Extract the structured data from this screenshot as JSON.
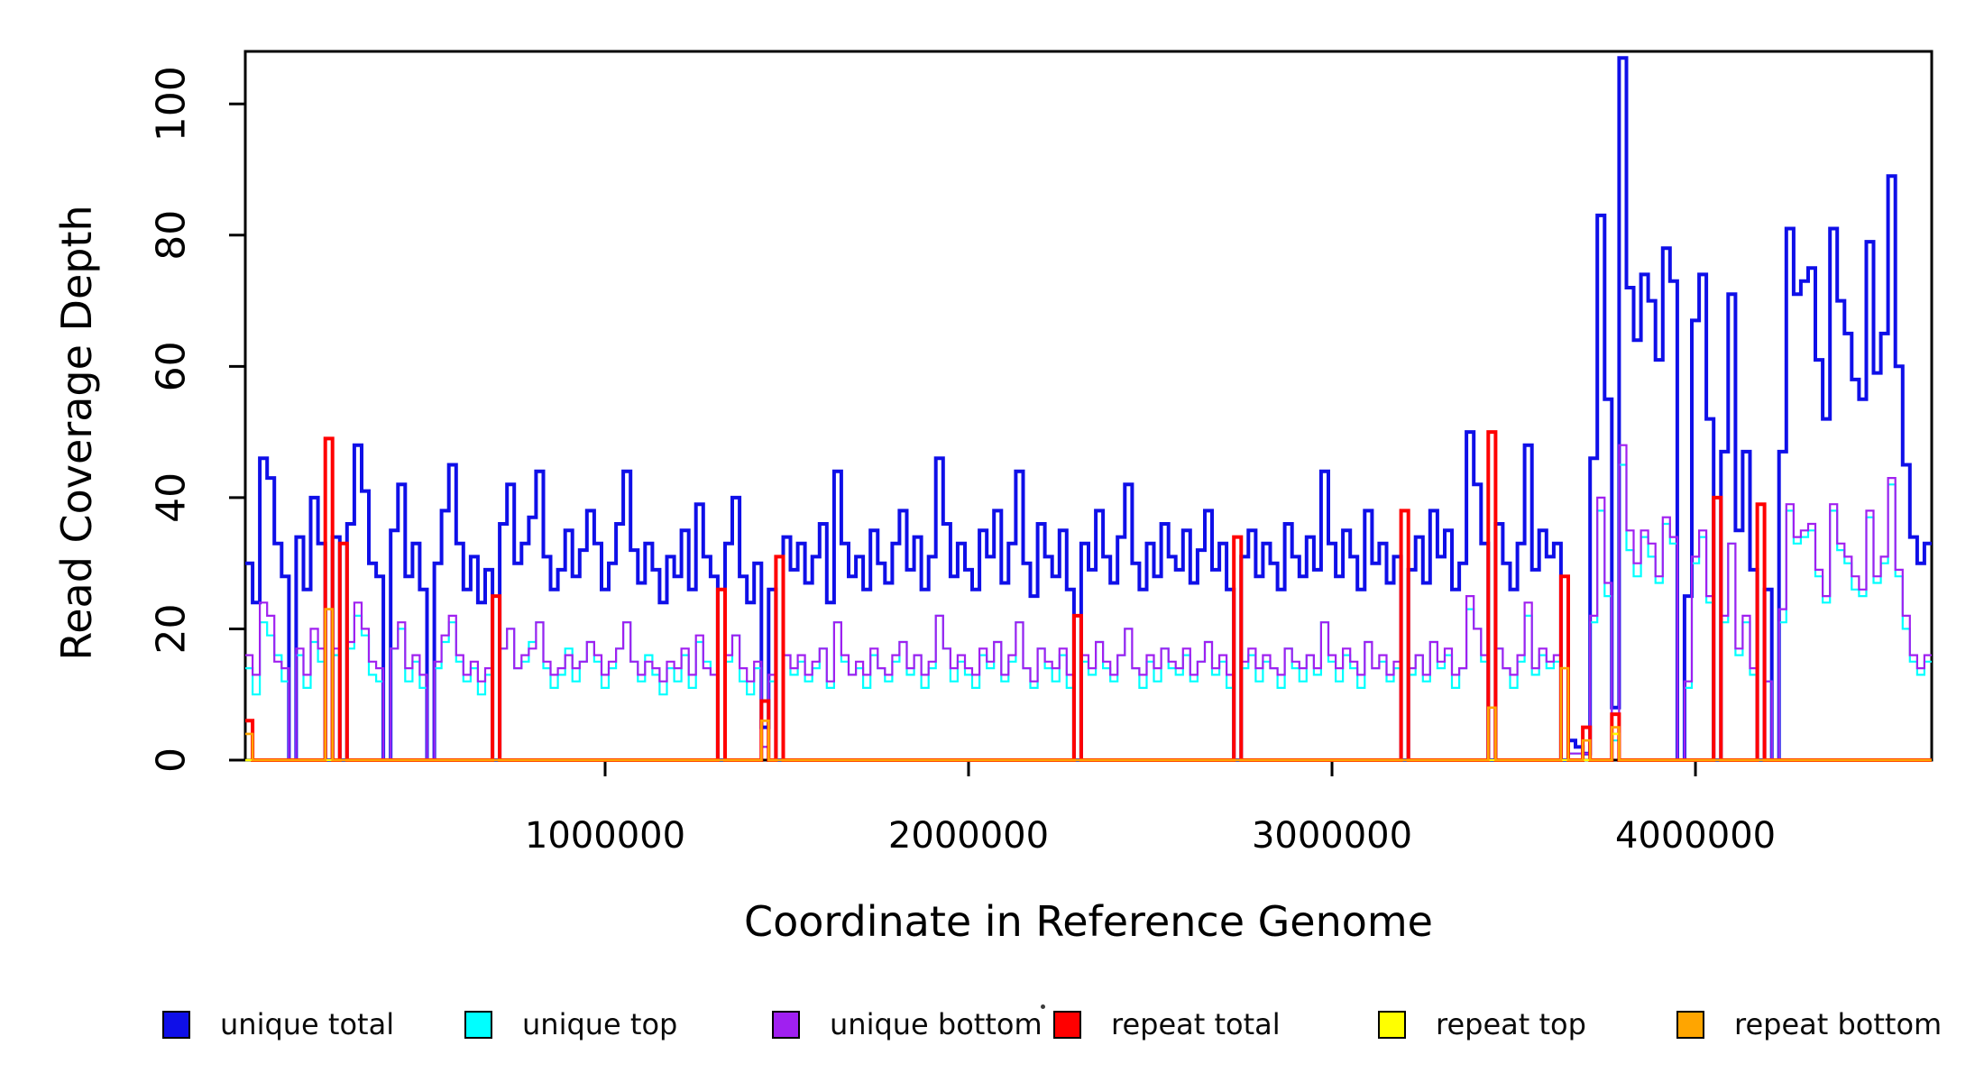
{
  "chart_data": {
    "type": "line",
    "subtype": "step",
    "title": "",
    "xlabel": "Coordinate in Reference Genome",
    "ylabel": "Read Coverage Depth",
    "xlim": [
      10000,
      4650000
    ],
    "ylim": [
      0,
      108
    ],
    "grid": false,
    "legend_position": "bottom",
    "bin_size": 20000,
    "x_ticks": [
      {
        "value": 1000000,
        "label": "1000000"
      },
      {
        "value": 2000000,
        "label": "2000000"
      },
      {
        "value": 3000000,
        "label": "3000000"
      },
      {
        "value": 4000000,
        "label": "4000000"
      }
    ],
    "y_ticks": [
      {
        "value": 0,
        "label": "0"
      },
      {
        "value": 20,
        "label": "20"
      },
      {
        "value": 40,
        "label": "40"
      },
      {
        "value": 60,
        "label": "60"
      },
      {
        "value": 80,
        "label": "80"
      },
      {
        "value": 100,
        "label": "100"
      }
    ],
    "series": [
      {
        "name": "unique total",
        "color": "#0f0fe8",
        "line_width": 4,
        "values": [
          30,
          24,
          46,
          43,
          33,
          28,
          0,
          34,
          26,
          40,
          33,
          0,
          34,
          0,
          36,
          48,
          41,
          30,
          28,
          0,
          35,
          42,
          28,
          33,
          26,
          0,
          30,
          38,
          45,
          33,
          26,
          31,
          24,
          29,
          0,
          36,
          42,
          30,
          33,
          37,
          44,
          31,
          26,
          29,
          35,
          28,
          32,
          38,
          33,
          26,
          30,
          36,
          44,
          32,
          27,
          33,
          29,
          24,
          31,
          28,
          35,
          26,
          39,
          31,
          28,
          0,
          33,
          40,
          28,
          24,
          30,
          5,
          26,
          0,
          34,
          29,
          33,
          27,
          31,
          36,
          24,
          44,
          33,
          28,
          31,
          26,
          35,
          30,
          27,
          33,
          38,
          29,
          34,
          26,
          31,
          46,
          36,
          28,
          33,
          29,
          26,
          35,
          31,
          38,
          27,
          33,
          44,
          30,
          25,
          36,
          31,
          28,
          35,
          26,
          0,
          33,
          29,
          38,
          31,
          27,
          34,
          42,
          30,
          26,
          33,
          28,
          36,
          31,
          29,
          35,
          27,
          32,
          38,
          29,
          33,
          26,
          0,
          31,
          35,
          28,
          33,
          30,
          26,
          36,
          31,
          28,
          34,
          29,
          44,
          33,
          28,
          35,
          31,
          26,
          38,
          30,
          33,
          27,
          31,
          0,
          29,
          34,
          27,
          38,
          31,
          35,
          26,
          30,
          50,
          42,
          33,
          0,
          36,
          30,
          26,
          33,
          48,
          29,
          35,
          31,
          33,
          0,
          3,
          2,
          1,
          46,
          83,
          55,
          8,
          107,
          72,
          64,
          74,
          70,
          61,
          78,
          73,
          0,
          25,
          67,
          74,
          52,
          0,
          47,
          71,
          35,
          47,
          29,
          0,
          26,
          0,
          47,
          81,
          71,
          73,
          75,
          61,
          52,
          81,
          70,
          65,
          58,
          55,
          79,
          59,
          65,
          89,
          60,
          45,
          34,
          30,
          33
        ]
      },
      {
        "name": "unique top",
        "color": "#00ffff",
        "line_width": 2.2,
        "values": [
          14,
          10,
          21,
          19,
          16,
          12,
          0,
          16,
          11,
          18,
          15,
          0,
          16,
          0,
          17,
          22,
          19,
          13,
          12,
          0,
          17,
          20,
          12,
          15,
          11,
          0,
          14,
          18,
          21,
          15,
          12,
          14,
          10,
          13,
          0,
          17,
          20,
          14,
          15,
          18,
          21,
          14,
          11,
          13,
          17,
          12,
          15,
          18,
          15,
          11,
          14,
          17,
          21,
          15,
          12,
          16,
          13,
          10,
          14,
          12,
          16,
          11,
          18,
          15,
          13,
          0,
          15,
          19,
          12,
          10,
          14,
          2,
          12,
          0,
          16,
          13,
          15,
          12,
          14,
          17,
          11,
          21,
          15,
          13,
          14,
          11,
          16,
          14,
          12,
          15,
          18,
          13,
          16,
          11,
          14,
          22,
          17,
          12,
          15,
          13,
          11,
          16,
          14,
          18,
          12,
          15,
          21,
          14,
          11,
          17,
          14,
          12,
          16,
          11,
          0,
          15,
          13,
          18,
          14,
          12,
          16,
          20,
          14,
          11,
          15,
          12,
          17,
          14,
          13,
          16,
          12,
          15,
          18,
          13,
          15,
          11,
          0,
          14,
          16,
          12,
          15,
          14,
          11,
          17,
          14,
          12,
          16,
          13,
          21,
          15,
          12,
          16,
          14,
          11,
          18,
          14,
          15,
          12,
          14,
          0,
          13,
          16,
          12,
          18,
          14,
          16,
          11,
          14,
          23,
          20,
          15,
          0,
          17,
          14,
          11,
          15,
          22,
          13,
          16,
          14,
          15,
          0,
          1,
          1,
          0,
          21,
          38,
          25,
          3,
          45,
          32,
          28,
          34,
          31,
          27,
          36,
          33,
          0,
          11,
          30,
          34,
          24,
          0,
          21,
          33,
          16,
          21,
          13,
          0,
          12,
          0,
          21,
          38,
          33,
          34,
          35,
          28,
          24,
          38,
          32,
          30,
          26,
          25,
          37,
          27,
          30,
          42,
          28,
          20,
          15,
          13,
          15
        ]
      },
      {
        "name": "unique bottom",
        "color": "#a020f0",
        "line_width": 2.2,
        "values": [
          16,
          13,
          24,
          22,
          15,
          14,
          0,
          17,
          13,
          20,
          17,
          0,
          17,
          0,
          18,
          24,
          20,
          15,
          14,
          0,
          17,
          21,
          14,
          16,
          13,
          0,
          15,
          19,
          22,
          16,
          13,
          15,
          12,
          14,
          0,
          17,
          20,
          14,
          16,
          17,
          21,
          15,
          13,
          14,
          16,
          14,
          15,
          18,
          16,
          13,
          15,
          17,
          21,
          15,
          13,
          15,
          14,
          12,
          15,
          14,
          17,
          13,
          19,
          14,
          13,
          0,
          16,
          19,
          14,
          12,
          15,
          2,
          13,
          0,
          16,
          14,
          16,
          13,
          15,
          17,
          12,
          21,
          16,
          13,
          15,
          13,
          17,
          14,
          13,
          16,
          18,
          14,
          16,
          13,
          15,
          22,
          17,
          14,
          16,
          14,
          13,
          17,
          15,
          18,
          13,
          16,
          21,
          14,
          12,
          17,
          15,
          14,
          17,
          13,
          0,
          16,
          14,
          18,
          15,
          13,
          16,
          20,
          14,
          13,
          16,
          14,
          17,
          15,
          14,
          17,
          13,
          15,
          18,
          14,
          16,
          13,
          0,
          15,
          17,
          14,
          16,
          14,
          13,
          17,
          15,
          14,
          16,
          14,
          21,
          16,
          14,
          17,
          15,
          13,
          18,
          14,
          16,
          13,
          15,
          0,
          14,
          16,
          13,
          18,
          15,
          17,
          13,
          14,
          25,
          20,
          16,
          0,
          17,
          14,
          13,
          16,
          24,
          14,
          17,
          15,
          16,
          0,
          1,
          1,
          1,
          22,
          40,
          27,
          4,
          48,
          35,
          30,
          35,
          33,
          28,
          37,
          34,
          0,
          12,
          31,
          35,
          25,
          0,
          22,
          33,
          17,
          22,
          14,
          0,
          12,
          0,
          23,
          39,
          34,
          35,
          36,
          29,
          25,
          39,
          33,
          31,
          28,
          26,
          38,
          28,
          31,
          43,
          29,
          22,
          16,
          14,
          16
        ]
      },
      {
        "name": "repeat total",
        "color": "#ff0000",
        "line_width": 4,
        "baseline": 0,
        "spikes": {
          "0": 6,
          "11": 49,
          "13": 33,
          "34": 25,
          "65": 26,
          "71": 9,
          "73": 31,
          "114": 22,
          "136": 34,
          "159": 38,
          "171": 50,
          "181": 28,
          "184": 5,
          "188": 7,
          "202": 40,
          "208": 39
        }
      },
      {
        "name": "repeat top",
        "color": "#ffff00",
        "line_width": 2.6,
        "baseline": 0,
        "spikes": {
          "71": 6,
          "188": 4
        }
      },
      {
        "name": "repeat bottom",
        "color": "#ffa500",
        "line_width": 2.6,
        "baseline": 0,
        "spikes": {
          "0": 4,
          "11": 23,
          "71": 6,
          "171": 8,
          "181": 14,
          "184": 3,
          "188": 5
        }
      }
    ]
  },
  "legend": {
    "item_lefts": [
      180,
      515,
      856,
      1168,
      1528,
      1859
    ]
  }
}
